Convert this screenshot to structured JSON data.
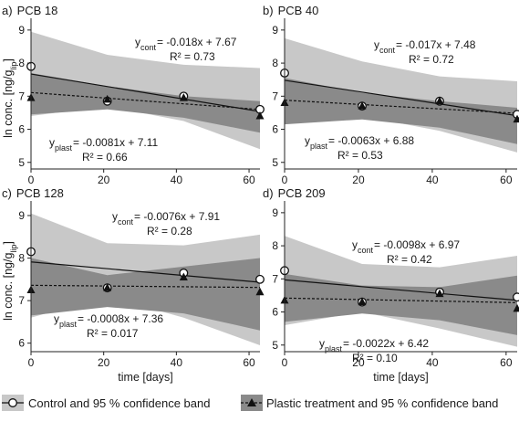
{
  "colors": {
    "control_band": "#c8c8c8",
    "plastic_band": "#8a8a8a",
    "line": "#111111",
    "background": "#ffffff"
  },
  "legend": {
    "control_label": "Control and 95 % confidence band",
    "plastic_label": "Plastic treatment and 95 % confidence band"
  },
  "chart_data": [
    {
      "type": "scatter",
      "title": "PCB 18",
      "panel_letter": "a)",
      "xlabel": "",
      "ylabel": "ln conc. [ng/glip]",
      "ylabel_main": "ln conc. [ng/g",
      "ylabel_sub": "lip",
      "ylabel_end": "]",
      "xlim": [
        0,
        63
      ],
      "ylim": [
        4.8,
        9.3
      ],
      "xticks": [
        0,
        20,
        40,
        60
      ],
      "yticks": [
        5,
        6,
        7,
        8,
        9
      ],
      "series": [
        {
          "name": "Control",
          "marker": "circle",
          "x": [
            0,
            21,
            42,
            63
          ],
          "y": [
            7.9,
            6.85,
            7.0,
            6.6
          ],
          "fit": {
            "slope": -0.018,
            "intercept": 7.67
          },
          "band": {
            "x": [
              0,
              21,
              42,
              63
            ],
            "lower": [
              6.4,
              6.7,
              6.25,
              5.4
            ],
            "upper": [
              8.95,
              8.25,
              7.95,
              7.85
            ]
          },
          "eq_sub": "cont",
          "eq_rhs": "= -0.018x + 7.67",
          "r2": "R² = 0.73"
        },
        {
          "name": "Plastic treatment",
          "marker": "triangle",
          "x": [
            0,
            21,
            42,
            63
          ],
          "y": [
            6.95,
            6.9,
            6.95,
            6.4
          ],
          "fit": {
            "slope": -0.0081,
            "intercept": 7.11
          },
          "band": {
            "x": [
              0,
              21,
              42,
              63
            ],
            "lower": [
              6.45,
              6.6,
              6.35,
              5.9
            ],
            "upper": [
              7.7,
              7.3,
              7.0,
              6.85
            ]
          },
          "eq_sub": "plast",
          "eq_rhs": "= -0.0081x + 7.11",
          "r2": "R² = 0.66"
        }
      ]
    },
    {
      "type": "scatter",
      "title": "PCB 40",
      "panel_letter": "b)",
      "xlabel": "",
      "ylabel": "",
      "xlim": [
        0,
        63
      ],
      "ylim": [
        4.8,
        9.3
      ],
      "xticks": [
        0,
        20,
        40,
        60
      ],
      "yticks": [
        5,
        6,
        7,
        8,
        9
      ],
      "series": [
        {
          "name": "Control",
          "marker": "circle",
          "x": [
            0,
            21,
            42,
            63
          ],
          "y": [
            7.7,
            6.7,
            6.85,
            6.45
          ],
          "fit": {
            "slope": -0.017,
            "intercept": 7.48
          },
          "band": {
            "x": [
              0,
              21,
              42,
              63
            ],
            "lower": [
              6.2,
              6.4,
              5.95,
              5.3
            ],
            "upper": [
              8.75,
              8.05,
              7.6,
              7.45
            ]
          },
          "eq_sub": "cont",
          "eq_rhs": "= -0.017x + 7.48",
          "r2": "R² = 0.72"
        },
        {
          "name": "Plastic treatment",
          "marker": "triangle",
          "x": [
            0,
            21,
            42,
            63
          ],
          "y": [
            6.8,
            6.7,
            6.85,
            6.3
          ],
          "fit": {
            "slope": -0.0063,
            "intercept": 6.88
          },
          "band": {
            "x": [
              0,
              21,
              42,
              63
            ],
            "lower": [
              6.15,
              6.3,
              6.05,
              5.55
            ],
            "upper": [
              7.55,
              7.1,
              6.85,
              6.65
            ]
          },
          "eq_sub": "plast",
          "eq_rhs": "= -0.0063x + 6.88",
          "r2": "R² = 0.53"
        }
      ]
    },
    {
      "type": "scatter",
      "title": "PCB 128",
      "panel_letter": "c)",
      "xlabel": "time [days]",
      "ylabel": "ln conc. [ng/glip]",
      "ylabel_main": "ln conc. [ng/g",
      "ylabel_sub": "lip",
      "ylabel_end": "]",
      "xlim": [
        0,
        63
      ],
      "ylim": [
        5.8,
        9.3
      ],
      "xticks": [
        0,
        20,
        40,
        60
      ],
      "yticks": [
        6,
        7,
        8,
        9
      ],
      "series": [
        {
          "name": "Control",
          "marker": "circle",
          "x": [
            0,
            21,
            42,
            63
          ],
          "y": [
            8.15,
            7.3,
            7.65,
            7.5
          ],
          "fit": {
            "slope": -0.0076,
            "intercept": 7.91
          },
          "band": {
            "x": [
              0,
              21,
              42,
              63
            ],
            "lower": [
              6.6,
              7.1,
              6.6,
              5.95
            ],
            "upper": [
              9.05,
              8.35,
              8.3,
              8.55
            ]
          },
          "eq_sub": "cont",
          "eq_rhs": "= -0.0076x + 7.91",
          "r2": "R² = 0.28"
        },
        {
          "name": "Plastic treatment",
          "marker": "triangle",
          "x": [
            0,
            21,
            42,
            63
          ],
          "y": [
            7.25,
            7.3,
            7.55,
            7.2
          ],
          "fit": {
            "slope": -0.0008,
            "intercept": 7.36
          },
          "band": {
            "x": [
              0,
              21,
              42,
              63
            ],
            "lower": [
              6.65,
              6.85,
              6.7,
              6.3
            ],
            "upper": [
              8.0,
              7.6,
              7.8,
              8.0
            ]
          },
          "eq_sub": "plast",
          "eq_rhs": "= -0.0008x + 7.36",
          "r2": "R² = 0.017"
        }
      ]
    },
    {
      "type": "scatter",
      "title": "PCB 209",
      "panel_letter": "d)",
      "xlabel": "time [days]",
      "ylabel": "",
      "xlim": [
        0,
        63
      ],
      "ylim": [
        4.8,
        9.3
      ],
      "xticks": [
        0,
        20,
        40,
        60
      ],
      "yticks": [
        5,
        6,
        7,
        8,
        9
      ],
      "series": [
        {
          "name": "Control",
          "marker": "circle",
          "x": [
            0,
            21,
            42,
            63
          ],
          "y": [
            7.25,
            6.3,
            6.6,
            6.45
          ],
          "fit": {
            "slope": -0.0098,
            "intercept": 6.97
          },
          "band": {
            "x": [
              0,
              21,
              42,
              63
            ],
            "lower": [
              5.6,
              6.0,
              5.5,
              4.95
            ],
            "upper": [
              8.3,
              7.45,
              7.35,
              7.7
            ]
          },
          "eq_sub": "cont",
          "eq_rhs": "= -0.0098x + 6.97",
          "r2": "R² = 0.42"
        },
        {
          "name": "Plastic treatment",
          "marker": "triangle",
          "x": [
            0,
            21,
            42,
            63
          ],
          "y": [
            6.35,
            6.3,
            6.55,
            6.1
          ],
          "fit": {
            "slope": -0.0022,
            "intercept": 6.42
          },
          "band": {
            "x": [
              0,
              21,
              42,
              63
            ],
            "lower": [
              5.7,
              5.95,
              5.75,
              5.3
            ],
            "upper": [
              7.15,
              6.8,
              6.75,
              7.1
            ]
          },
          "eq_sub": "plast",
          "eq_rhs": "= -0.0022x + 6.42",
          "r2": "R² = 0.10"
        }
      ]
    }
  ]
}
